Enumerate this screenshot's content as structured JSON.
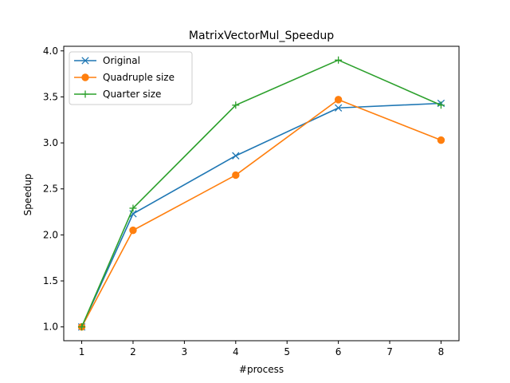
{
  "chart_data": {
    "type": "line",
    "title": "MatrixVectorMul_Speedup",
    "xlabel": "#process",
    "ylabel": "Speedup",
    "x": [
      1,
      2,
      4,
      6,
      8
    ],
    "xlim": [
      0.65,
      8.35
    ],
    "ylim": [
      0.85,
      4.05
    ],
    "xticks": [
      "1",
      "2",
      "3",
      "4",
      "5",
      "6",
      "7",
      "8"
    ],
    "yticks": [
      "1.0",
      "1.5",
      "2.0",
      "2.5",
      "3.0",
      "3.5",
      "4.0"
    ],
    "grid": false,
    "legend_position": "top-left",
    "series": [
      {
        "name": "Original",
        "values": [
          1.0,
          2.23,
          2.86,
          3.38,
          3.43
        ],
        "color": "#1f77b4",
        "marker": "x"
      },
      {
        "name": "Quadruple size",
        "values": [
          1.0,
          2.05,
          2.65,
          3.47,
          3.03
        ],
        "color": "#ff7f0e",
        "marker": "circle"
      },
      {
        "name": "Quarter size",
        "values": [
          1.0,
          2.29,
          3.41,
          3.9,
          3.41
        ],
        "color": "#2ca02c",
        "marker": "plus"
      }
    ]
  }
}
